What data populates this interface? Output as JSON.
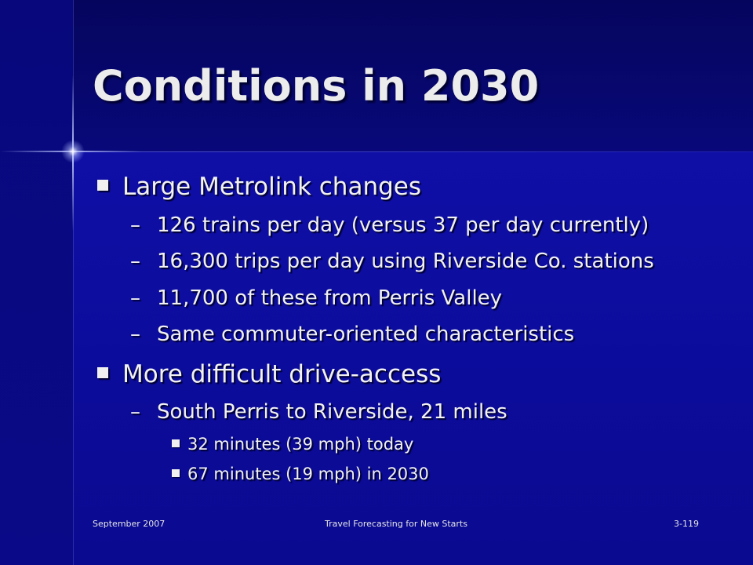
{
  "slide": {
    "title": "Conditions in 2030",
    "bullets": [
      {
        "text": "Large Metrolink changes",
        "subitems": [
          {
            "dash": "–",
            "text": "126 trains per day (versus 37 per day currently)"
          },
          {
            "dash": "–",
            "text": "16,300 trips per day using Riverside Co. stations"
          },
          {
            "dash": "–",
            "text": "11,700 of these from Perris Valley"
          },
          {
            "dash": "–",
            "text": "Same commuter-oriented characteristics"
          }
        ]
      },
      {
        "text": "More difficult drive-access",
        "subitems": [
          {
            "dash": "–",
            "text": "South Perris to Riverside, 21 miles",
            "subitems": [
              {
                "text": "32 minutes (39 mph) today"
              },
              {
                "text": "67 minutes (19 mph) in 2030"
              }
            ]
          }
        ]
      }
    ]
  },
  "footer": {
    "date": "September  2007",
    "center": "Travel Forecasting for New Starts",
    "page": "3-119"
  },
  "colors": {
    "background": "#0c0c9c",
    "header": "#06066a",
    "text": "#f2f2f2"
  }
}
